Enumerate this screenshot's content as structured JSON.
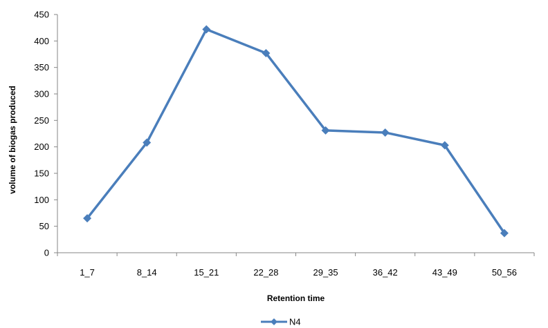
{
  "chart_data": {
    "type": "line",
    "categories": [
      "1_7",
      "8_14",
      "15_21",
      "22_28",
      "29_35",
      "36_42",
      "43_49",
      "50_56"
    ],
    "series": [
      {
        "name": "N4",
        "values": [
          65,
          208,
          422,
          377,
          231,
          227,
          203,
          37
        ]
      }
    ],
    "xlabel": "Retention time",
    "ylabel": "volume of biogas  produced",
    "ylim": [
      0,
      450
    ],
    "yticks": [
      0,
      50,
      100,
      150,
      200,
      250,
      300,
      350,
      400,
      450
    ],
    "grid": false,
    "legend_position": "bottom",
    "colors": {
      "series": "#4a7ebb"
    }
  }
}
